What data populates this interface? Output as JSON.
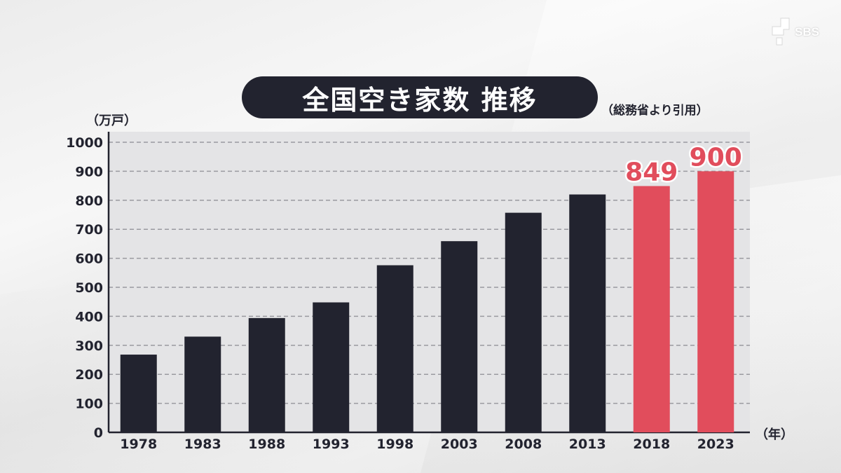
{
  "header": {
    "title": "全国空き家数 推移",
    "source": "（総務省より引用）",
    "logo_text": "SBS"
  },
  "chart_data": {
    "type": "bar",
    "title": "全国空き家数 推移",
    "ylabel": "（万戸）",
    "xlabel": "（年）",
    "categories": [
      "1978",
      "1983",
      "1988",
      "1993",
      "1998",
      "2003",
      "2008",
      "2013",
      "2018",
      "2023"
    ],
    "values": [
      268,
      330,
      394,
      448,
      576,
      659,
      757,
      820,
      849,
      900
    ],
    "ylim": [
      0,
      1000
    ],
    "yticks": [
      0,
      100,
      200,
      300,
      400,
      500,
      600,
      700,
      800,
      900,
      1000
    ],
    "ytick_labels": [
      "0",
      "100",
      "200",
      "300",
      "400",
      "500",
      "600",
      "700",
      "800",
      "900",
      "1000"
    ],
    "grid": true,
    "highlight_color": "#e14d5c",
    "bar_color": "#22232f",
    "highlighted_categories": [
      "2018",
      "2023"
    ],
    "data_labels": [
      {
        "category": "2018",
        "text": "849"
      },
      {
        "category": "2023",
        "text": "900"
      }
    ]
  }
}
